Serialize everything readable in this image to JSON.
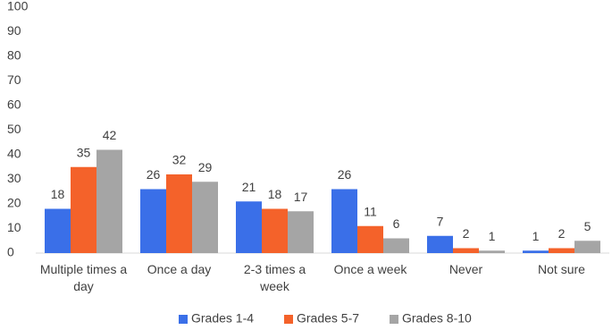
{
  "chart_data": {
    "type": "bar",
    "categories": [
      "Multiple times a day",
      "Once a day",
      "2-3 times a week",
      "Once a week",
      "Never",
      "Not sure"
    ],
    "series": [
      {
        "name": "Grades 1-4",
        "color": "#3a6fe8",
        "values": [
          18,
          26,
          21,
          26,
          7,
          1
        ]
      },
      {
        "name": "Grades 5-7",
        "color": "#f4622a",
        "values": [
          35,
          32,
          18,
          11,
          2,
          2
        ]
      },
      {
        "name": "Grades 8-10",
        "color": "#a5a5a5",
        "values": [
          42,
          29,
          17,
          6,
          1,
          5
        ]
      }
    ],
    "ylim": [
      0,
      100
    ],
    "yticks": [
      0,
      10,
      20,
      30,
      40,
      50,
      60,
      70,
      80,
      90,
      100
    ],
    "legend": "bottom"
  }
}
